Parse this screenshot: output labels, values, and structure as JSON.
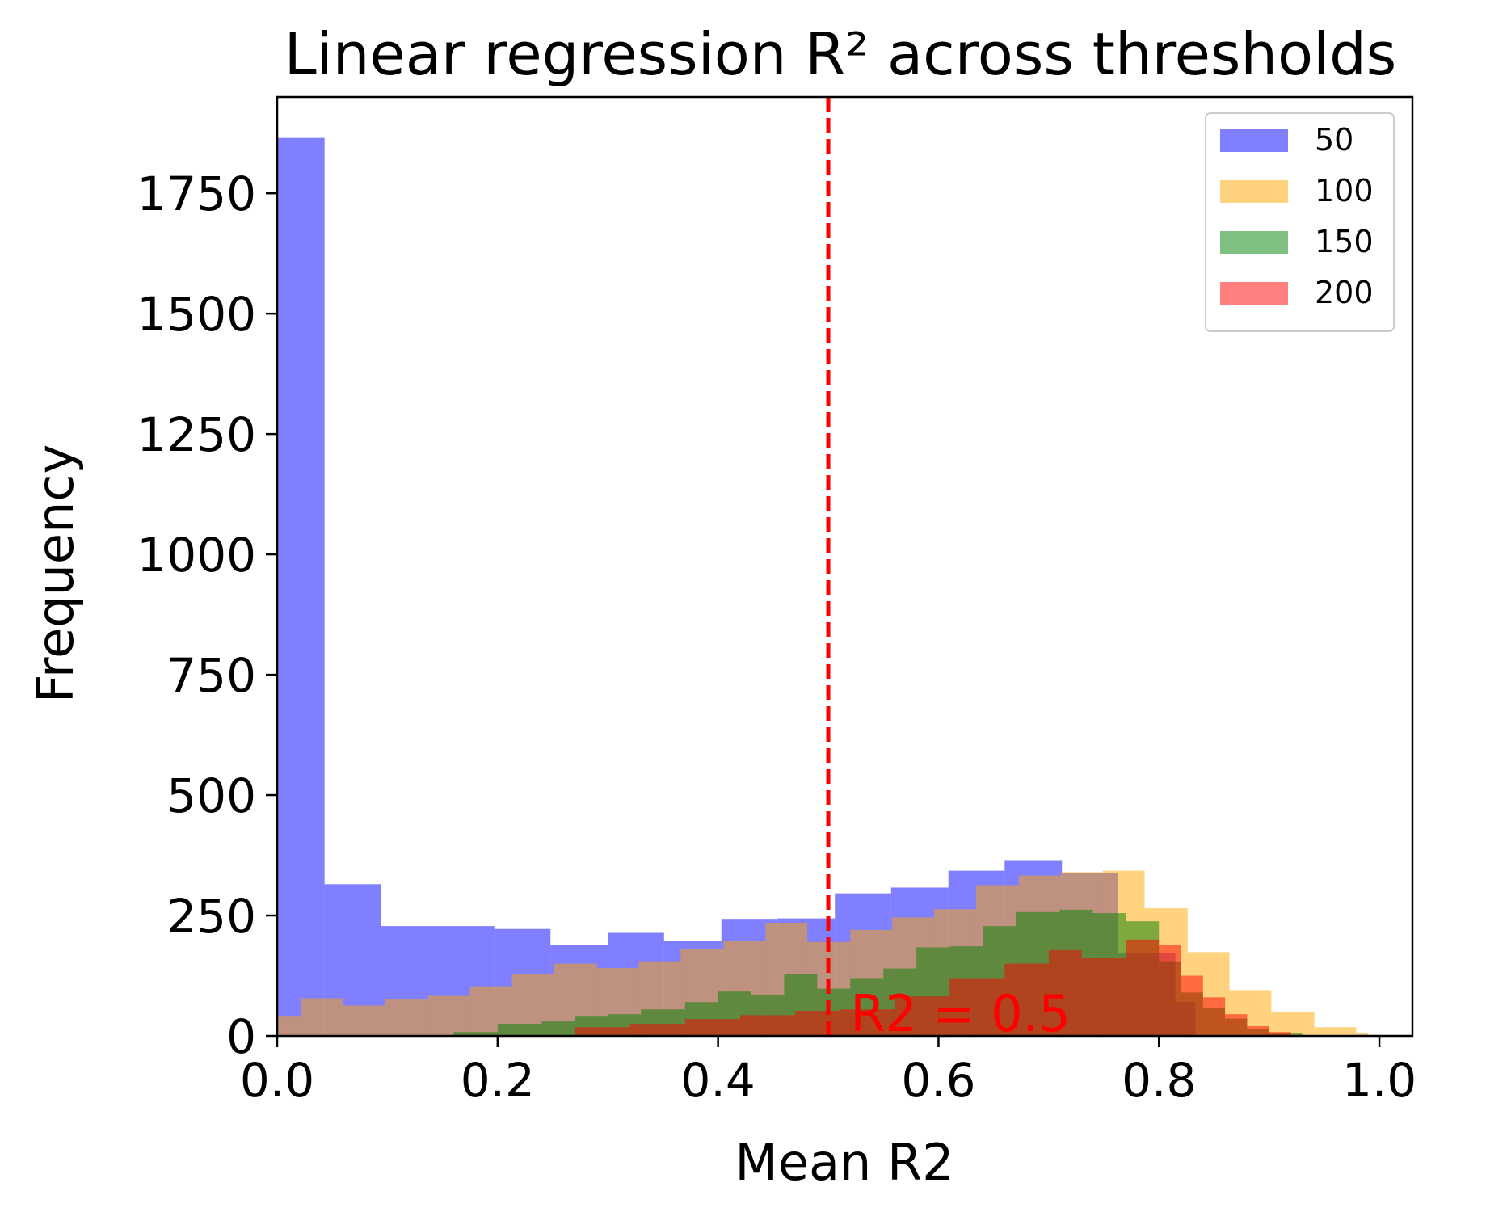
{
  "chart_data": {
    "type": "histogram",
    "title": "Linear regression R² across thresholds",
    "xlabel": "Mean R2",
    "ylabel": "Frequency",
    "xlim": [
      0.0,
      1.03
    ],
    "ylim": [
      0,
      1950
    ],
    "x_ticks": [
      0.0,
      0.2,
      0.4,
      0.6,
      0.8,
      1.0
    ],
    "x_tick_labels": [
      "0.0",
      "0.2",
      "0.4",
      "0.6",
      "0.8",
      "1.0"
    ],
    "y_ticks": [
      0,
      250,
      500,
      750,
      1000,
      1250,
      1500,
      1750
    ],
    "y_tick_labels": [
      "0",
      "250",
      "500",
      "750",
      "1000",
      "1250",
      "1500",
      "1750"
    ],
    "grid": false,
    "legend_position": "top-right",
    "opacity": 0.5,
    "series": [
      {
        "name": "50",
        "color": "#0000ff",
        "bins": [
          [
            0.0,
            0.043,
            1865
          ],
          [
            0.043,
            0.094,
            315
          ],
          [
            0.094,
            0.197,
            228
          ],
          [
            0.197,
            0.248,
            222
          ],
          [
            0.248,
            0.3,
            188
          ],
          [
            0.3,
            0.351,
            214
          ],
          [
            0.351,
            0.403,
            198
          ],
          [
            0.403,
            0.454,
            243
          ],
          [
            0.454,
            0.506,
            244
          ],
          [
            0.506,
            0.557,
            296
          ],
          [
            0.557,
            0.609,
            308
          ],
          [
            0.609,
            0.66,
            343
          ],
          [
            0.66,
            0.712,
            365
          ],
          [
            0.712,
            0.763,
            338
          ],
          [
            0.763,
            0.815,
            172
          ],
          [
            0.815,
            0.833,
            70
          ]
        ]
      },
      {
        "name": "100",
        "color": "#ffa500",
        "bins": [
          [
            0.0,
            0.022,
            40
          ],
          [
            0.022,
            0.06,
            78
          ],
          [
            0.06,
            0.098,
            63
          ],
          [
            0.098,
            0.137,
            77
          ],
          [
            0.137,
            0.175,
            83
          ],
          [
            0.175,
            0.213,
            103
          ],
          [
            0.213,
            0.251,
            128
          ],
          [
            0.251,
            0.29,
            150
          ],
          [
            0.29,
            0.328,
            141
          ],
          [
            0.328,
            0.366,
            155
          ],
          [
            0.366,
            0.405,
            180
          ],
          [
            0.405,
            0.443,
            197
          ],
          [
            0.443,
            0.481,
            235
          ],
          [
            0.481,
            0.52,
            195
          ],
          [
            0.52,
            0.558,
            220
          ],
          [
            0.558,
            0.596,
            246
          ],
          [
            0.596,
            0.634,
            263
          ],
          [
            0.634,
            0.673,
            313
          ],
          [
            0.673,
            0.711,
            333
          ],
          [
            0.711,
            0.749,
            340
          ],
          [
            0.749,
            0.787,
            343
          ],
          [
            0.787,
            0.826,
            265
          ],
          [
            0.826,
            0.864,
            174
          ],
          [
            0.864,
            0.902,
            95
          ],
          [
            0.902,
            0.941,
            50
          ],
          [
            0.941,
            0.979,
            18
          ],
          [
            0.979,
            0.99,
            5
          ]
        ]
      },
      {
        "name": "150",
        "color": "#008000",
        "bins": [
          [
            0.16,
            0.2,
            8
          ],
          [
            0.2,
            0.24,
            25
          ],
          [
            0.24,
            0.27,
            30
          ],
          [
            0.27,
            0.3,
            40
          ],
          [
            0.3,
            0.33,
            45
          ],
          [
            0.33,
            0.37,
            55
          ],
          [
            0.37,
            0.4,
            70
          ],
          [
            0.4,
            0.43,
            92
          ],
          [
            0.43,
            0.46,
            85
          ],
          [
            0.46,
            0.49,
            128
          ],
          [
            0.49,
            0.52,
            98
          ],
          [
            0.52,
            0.55,
            120
          ],
          [
            0.55,
            0.58,
            140
          ],
          [
            0.58,
            0.61,
            184
          ],
          [
            0.61,
            0.64,
            186
          ],
          [
            0.64,
            0.67,
            228
          ],
          [
            0.67,
            0.71,
            257
          ],
          [
            0.71,
            0.74,
            262
          ],
          [
            0.74,
            0.77,
            255
          ],
          [
            0.77,
            0.8,
            238
          ],
          [
            0.8,
            0.82,
            155
          ],
          [
            0.82,
            0.84,
            90
          ],
          [
            0.84,
            0.86,
            58
          ],
          [
            0.86,
            0.88,
            36
          ],
          [
            0.88,
            0.9,
            15
          ],
          [
            0.9,
            0.93,
            5
          ]
        ]
      },
      {
        "name": "200",
        "color": "#ff0000",
        "bins": [
          [
            0.27,
            0.32,
            18
          ],
          [
            0.32,
            0.37,
            25
          ],
          [
            0.37,
            0.42,
            35
          ],
          [
            0.42,
            0.47,
            43
          ],
          [
            0.47,
            0.51,
            52
          ],
          [
            0.51,
            0.56,
            55
          ],
          [
            0.56,
            0.61,
            82
          ],
          [
            0.61,
            0.66,
            120
          ],
          [
            0.66,
            0.7,
            150
          ],
          [
            0.7,
            0.73,
            178
          ],
          [
            0.73,
            0.77,
            162
          ],
          [
            0.77,
            0.8,
            200
          ],
          [
            0.8,
            0.82,
            188
          ],
          [
            0.82,
            0.84,
            125
          ],
          [
            0.84,
            0.86,
            80
          ],
          [
            0.86,
            0.88,
            45
          ],
          [
            0.88,
            0.9,
            20
          ],
          [
            0.9,
            0.92,
            8
          ]
        ]
      }
    ],
    "annotations": [
      {
        "type": "vline",
        "x": 0.5,
        "color": "#ff0000",
        "style": "dashed"
      },
      {
        "type": "text",
        "x": 0.52,
        "y": 0,
        "text": "R2 = 0.5",
        "color": "#ff0000"
      }
    ]
  }
}
